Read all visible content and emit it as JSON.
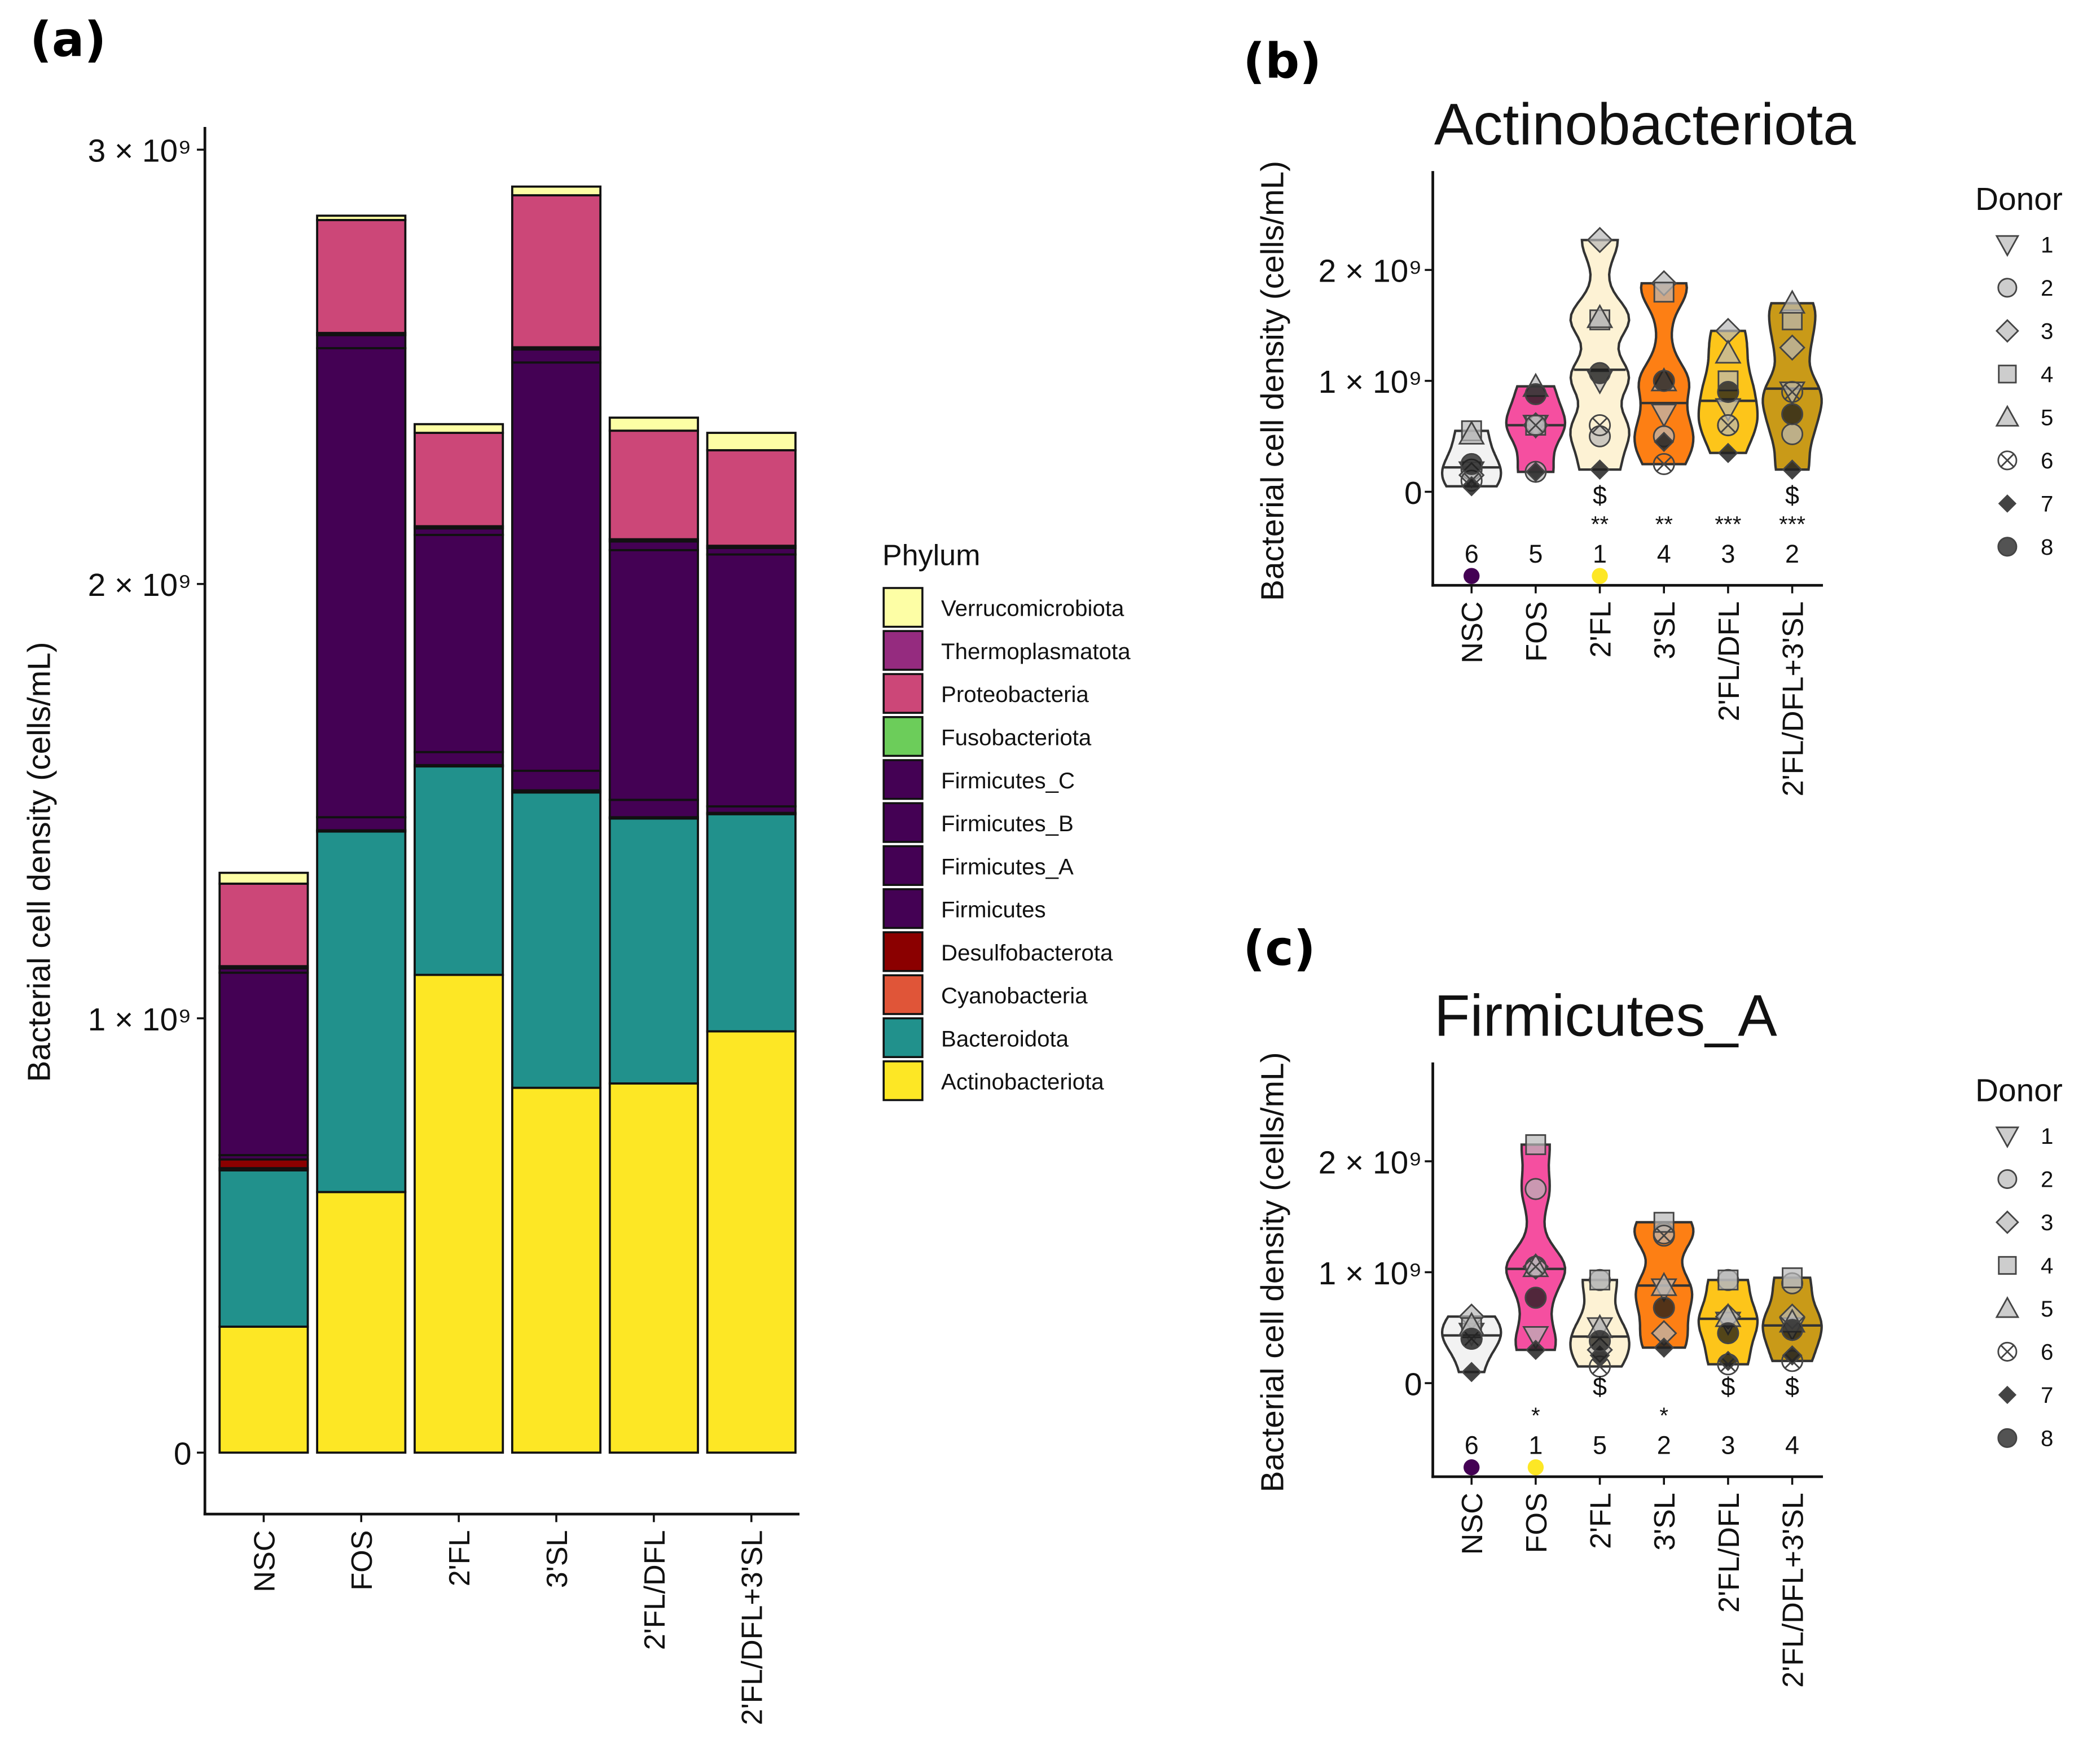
{
  "panels": {
    "a": "(a)",
    "b": "(b)",
    "c": "(c)"
  },
  "chart_data": [
    {
      "type": "bar",
      "stacked": true,
      "panel": "(a)",
      "ylabel": "Bacterial cell density (cells/mL)",
      "ylim": [
        0,
        3000000000.0
      ],
      "yticks": [
        0,
        1000000000.0,
        2000000000.0,
        3000000000.0
      ],
      "ytick_labels": [
        "0",
        "1 × 10⁹",
        "2 × 10⁹",
        "3 × 10⁹"
      ],
      "categories": [
        "NSC",
        "FOS",
        "2'FL",
        "3'SL",
        "2'FL/DFL",
        "2'FL/DFL+3'SL"
      ],
      "legend_title": "Phylum",
      "legend_position": "right",
      "series": [
        {
          "name": "Actinobacteriota",
          "color": "#fde725",
          "values": [
            290000000.0,
            600000000.0,
            1100000000.0,
            840000000.0,
            850000000.0,
            970000000.0
          ]
        },
        {
          "name": "Bacteroidota",
          "color": "#21918c",
          "values": [
            360000000.0,
            830000000.0,
            480000000.0,
            680000000.0,
            610000000.0,
            500000000.0
          ]
        },
        {
          "name": "Cyanobacteria",
          "color": "#e05538",
          "values": [
            5000000.0,
            0,
            0,
            0,
            0,
            0
          ]
        },
        {
          "name": "Desulfobacterota",
          "color": "#8b0000",
          "values": [
            20000000.0,
            3000000.0,
            3000000.0,
            5000000.0,
            3000000.0,
            3000000.0
          ]
        },
        {
          "name": "Firmicutes",
          "color": "#440154",
          "values": [
            10000000.0,
            30000000.0,
            30000000.0,
            45000000.0,
            40000000.0,
            15000000.0
          ]
        },
        {
          "name": "Firmicutes_A",
          "color": "#440154",
          "values": [
            420000000.0,
            1080000000.0,
            500000000.0,
            940000000.0,
            575000000.0,
            580000000.0
          ]
        },
        {
          "name": "Firmicutes_B",
          "color": "#440154",
          "values": [
            10000000.0,
            30000000.0,
            15000000.0,
            30000000.0,
            20000000.0,
            15000000.0
          ]
        },
        {
          "name": "Firmicutes_C",
          "color": "#440154",
          "values": [
            5000000.0,
            5000000.0,
            5000000.0,
            5000000.0,
            5000000.0,
            5000000.0
          ]
        },
        {
          "name": "Fusobacteriota",
          "color": "#6ccd5a",
          "values": [
            0,
            0,
            0,
            0,
            0,
            0
          ]
        },
        {
          "name": "Proteobacteria",
          "color": "#cc4778",
          "values": [
            190000000.0,
            260000000.0,
            215000000.0,
            350000000.0,
            250000000.0,
            220000000.0
          ]
        },
        {
          "name": "Thermoplasmatota",
          "color": "#952b7f",
          "values": [
            0,
            0,
            0,
            0,
            0,
            0
          ]
        },
        {
          "name": "Verrucomicrobiota",
          "color": "#fdfea5",
          "values": [
            25000000.0,
            10000000.0,
            20000000.0,
            20000000.0,
            30000000.0,
            40000000.0
          ]
        }
      ]
    },
    {
      "type": "violin",
      "panel": "(b)",
      "title": "Actinobacteriota",
      "ylabel": "Bacterial cell density (cells/mL)",
      "yticks": [
        0,
        1000000000.0,
        2000000000.0
      ],
      "ytick_labels": [
        "0",
        "1 × 10⁹",
        "2 × 10⁹"
      ],
      "categories": [
        "NSC",
        "FOS",
        "2'FL",
        "3'SL",
        "2'FL/DFL",
        "2'FL/DFL+3'SL"
      ],
      "colors": [
        "#f2f2f2",
        "#f54fa0",
        "#fdf2d4",
        "#fd7f14",
        "#fdc51a",
        "#c99a18"
      ],
      "medians": [
        220000000.0,
        600000000.0,
        1100000000.0,
        800000000.0,
        820000000.0,
        930000000.0
      ],
      "donor_values": [
        [
          180000000.0,
          200000000.0,
          150000000.0,
          550000000.0,
          520000000.0,
          100000000.0,
          50000000.0,
          250000000.0
        ],
        [
          600000000.0,
          180000000.0,
          600000000.0,
          600000000.0,
          950000000.0,
          600000000.0,
          180000000.0,
          880000000.0
        ],
        [
          1000000000.0,
          500000000.0,
          2270000000.0,
          1550000000.0,
          1570000000.0,
          600000000.0,
          200000000.0,
          1070000000.0
        ],
        [
          700000000.0,
          500000000.0,
          1880000000.0,
          1800000000.0,
          1000000000.0,
          250000000.0,
          450000000.0,
          1000000000.0
        ],
        [
          750000000.0,
          600000000.0,
          1450000000.0,
          1000000000.0,
          1250000000.0,
          600000000.0,
          350000000.0,
          900000000.0
        ],
        [
          900000000.0,
          520000000.0,
          1300000000.0,
          1550000000.0,
          1700000000.0,
          900000000.0,
          200000000.0,
          700000000.0
        ]
      ],
      "ranks": [
        "6",
        "5",
        "1",
        "4",
        "3",
        "2"
      ],
      "stars": [
        "",
        "",
        "**",
        "**",
        "***",
        "***"
      ],
      "dollars": [
        "",
        "",
        "$",
        "",
        "",
        "$"
      ],
      "rank_dots": [
        "#440154",
        "",
        "#fde725",
        "",
        "",
        ""
      ],
      "legend_title": "Donor",
      "donors": [
        "1",
        "2",
        "3",
        "4",
        "5",
        "6",
        "7",
        "8"
      ]
    },
    {
      "type": "violin",
      "panel": "(c)",
      "title": "Firmicutes_A",
      "ylabel": "Bacterial cell density (cells/mL)",
      "yticks": [
        0,
        1000000000.0,
        2000000000.0
      ],
      "ytick_labels": [
        "0",
        "1 × 10⁹",
        "2 × 10⁹"
      ],
      "categories": [
        "NSC",
        "FOS",
        "2'FL",
        "3'SL",
        "2'FL/DFL",
        "2'FL/DFL+3'SL"
      ],
      "colors": [
        "#f2f2f2",
        "#f54fa0",
        "#fdf2d4",
        "#fd7f14",
        "#fdc51a",
        "#c99a18"
      ],
      "medians": [
        430000000.0,
        1030000000.0,
        420000000.0,
        880000000.0,
        580000000.0,
        520000000.0
      ],
      "donor_values": [
        [
          450000000.0,
          400000000.0,
          600000000.0,
          500000000.0,
          520000000.0,
          400000000.0,
          100000000.0,
          400000000.0
        ],
        [
          420000000.0,
          1750000000.0,
          1050000000.0,
          2150000000.0,
          1050000000.0,
          1050000000.0,
          300000000.0,
          770000000.0
        ],
        [
          500000000.0,
          930000000.0,
          300000000.0,
          930000000.0,
          500000000.0,
          150000000.0,
          250000000.0,
          380000000.0
        ],
        [
          850000000.0,
          1350000000.0,
          450000000.0,
          1450000000.0,
          880000000.0,
          1330000000.0,
          320000000.0,
          680000000.0
        ],
        [
          550000000.0,
          930000000.0,
          600000000.0,
          930000000.0,
          600000000.0,
          170000000.0,
          200000000.0,
          450000000.0
        ],
        [
          500000000.0,
          900000000.0,
          600000000.0,
          950000000.0,
          550000000.0,
          200000000.0,
          250000000.0,
          480000000.0
        ]
      ],
      "ranks": [
        "6",
        "1",
        "5",
        "2",
        "3",
        "4"
      ],
      "stars": [
        "",
        "*",
        "",
        "*",
        "",
        ""
      ],
      "dollars": [
        "",
        "",
        "$",
        "",
        "$",
        "$"
      ],
      "rank_dots": [
        "#440154",
        "#fde725",
        "",
        "",
        "",
        ""
      ],
      "legend_title": "Donor",
      "donors": [
        "1",
        "2",
        "3",
        "4",
        "5",
        "6",
        "7",
        "8"
      ]
    }
  ]
}
